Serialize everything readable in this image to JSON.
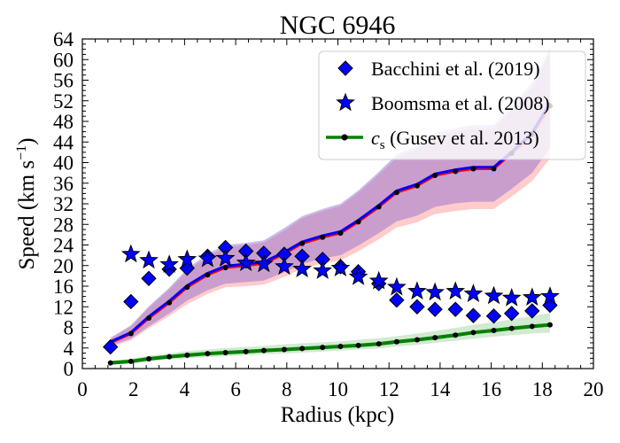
{
  "chart_data": {
    "type": "scatter",
    "title": "NGC 6946",
    "xlabel": "Radius (kpc)",
    "ylabel_prefix": "Speed (km s",
    "ylabel_exp": "−1",
    "ylabel_suffix": ")",
    "xlim": [
      0,
      20
    ],
    "ylim": [
      0,
      64
    ],
    "xticks": [
      0,
      2,
      4,
      6,
      8,
      10,
      12,
      14,
      16,
      18,
      20
    ],
    "yticks": [
      0,
      4,
      8,
      12,
      16,
      20,
      24,
      28,
      32,
      36,
      40,
      44,
      48,
      52,
      56,
      60,
      64
    ],
    "grid": false,
    "legend_position": "top-right",
    "legend": [
      {
        "label": "Bacchini et al. (2019)",
        "marker": "diamond"
      },
      {
        "label": "Boomsma et al. (2008)",
        "marker": "star"
      },
      {
        "label_symbol": "c",
        "label_sub": "s",
        "label_rest": " (Gusev et al. 2013)",
        "marker": "line-dot"
      }
    ],
    "series": [
      {
        "name": "Bacchini et al. (2019)",
        "marker": "diamond",
        "color": "#0000ff",
        "x": [
          1.1,
          1.9,
          2.6,
          3.4,
          4.1,
          4.9,
          5.6,
          6.4,
          7.1,
          7.9,
          8.6,
          9.4,
          10.1,
          10.8,
          11.6,
          12.3,
          13.1,
          13.8,
          14.6,
          15.3,
          16.1,
          16.8,
          17.6,
          18.3
        ],
        "y": [
          4.2,
          13.0,
          17.5,
          19.3,
          19.5,
          21.8,
          23.5,
          22.8,
          22.4,
          22.2,
          21.8,
          21.2,
          19.8,
          18.8,
          16.5,
          13.3,
          12.0,
          11.5,
          11.5,
          10.3,
          10.2,
          10.7,
          11.2,
          12.3
        ]
      },
      {
        "name": "Boomsma et al. (2008)",
        "marker": "star",
        "color": "#0000ff",
        "x": [
          1.9,
          2.6,
          3.4,
          4.1,
          4.9,
          5.6,
          6.4,
          7.1,
          7.9,
          8.6,
          9.4,
          10.1,
          10.8,
          11.6,
          12.3,
          13.1,
          13.8,
          14.6,
          15.3,
          16.1,
          16.8,
          17.6,
          18.3
        ],
        "y": [
          22.2,
          21.0,
          20.2,
          21.2,
          21.3,
          21.4,
          20.5,
          20.3,
          19.8,
          19.3,
          19.0,
          19.5,
          17.8,
          17.0,
          15.8,
          15.0,
          14.8,
          15.0,
          14.5,
          14.1,
          13.7,
          13.8,
          14.0
        ]
      },
      {
        "name": "c_s (Gusev et al. 2013)",
        "marker": "line-dot",
        "color": "#008000",
        "x": [
          1.1,
          1.9,
          2.6,
          3.4,
          4.1,
          4.9,
          5.6,
          6.4,
          7.1,
          7.9,
          8.6,
          9.4,
          10.1,
          10.8,
          11.6,
          12.3,
          13.1,
          13.8,
          14.6,
          15.3,
          16.1,
          16.8,
          17.6,
          18.3
        ],
        "y": [
          1.1,
          1.4,
          1.9,
          2.3,
          2.6,
          2.9,
          3.1,
          3.3,
          3.5,
          3.7,
          3.9,
          4.1,
          4.3,
          4.5,
          4.8,
          5.2,
          5.6,
          6.0,
          6.5,
          7.0,
          7.4,
          7.8,
          8.2,
          8.5
        ],
        "band_low": [
          0.8,
          1.0,
          1.4,
          1.8,
          2.0,
          2.2,
          2.4,
          2.6,
          2.8,
          2.9,
          3.1,
          3.3,
          3.5,
          3.7,
          3.9,
          4.3,
          4.6,
          5.0,
          5.4,
          5.8,
          6.2,
          6.5,
          6.8,
          7.0
        ],
        "band_high": [
          1.5,
          1.9,
          2.5,
          3.0,
          3.4,
          3.7,
          4.0,
          4.2,
          4.4,
          4.7,
          4.9,
          5.1,
          5.3,
          5.6,
          5.9,
          6.3,
          6.8,
          7.3,
          7.9,
          8.5,
          9.0,
          9.6,
          10.2,
          10.8
        ]
      },
      {
        "name": "",
        "marker": "line-dot",
        "color": "#ff0000",
        "x": [
          1.1,
          1.9,
          2.6,
          3.4,
          4.1,
          4.9,
          5.6,
          6.4,
          7.1,
          7.9,
          8.6,
          9.4,
          10.1,
          10.8,
          11.6,
          12.3,
          13.1,
          13.8,
          14.6,
          15.3,
          16.1,
          16.8,
          17.6,
          18.3
        ],
        "y": [
          5.0,
          6.8,
          9.8,
          12.8,
          15.8,
          18.2,
          19.6,
          20.0,
          20.4,
          22.3,
          24.3,
          25.5,
          26.3,
          28.5,
          31.4,
          34.2,
          35.5,
          37.5,
          38.3,
          38.8,
          38.8,
          41.8,
          45.5,
          51.0
        ],
        "band_low": [
          4.2,
          5.5,
          7.8,
          10.2,
          12.5,
          14.5,
          15.8,
          16.0,
          16.3,
          17.8,
          19.4,
          20.4,
          21.0,
          22.8,
          25.1,
          27.4,
          28.4,
          30.0,
          30.6,
          31.0,
          31.0,
          33.4,
          36.4,
          40.8
        ],
        "band_high": [
          5.8,
          8.2,
          11.8,
          15.4,
          19.0,
          21.8,
          23.5,
          24.0,
          24.5,
          26.8,
          29.2,
          30.6,
          31.6,
          34.2,
          37.7,
          41.0,
          42.6,
          45.0,
          46.0,
          46.6,
          46.6,
          50.2,
          54.6,
          61.2
        ]
      },
      {
        "name": "",
        "marker": "line",
        "color": "#0000ff",
        "x": [
          1.1,
          1.9,
          2.6,
          3.4,
          4.1,
          4.9,
          5.6,
          6.4,
          7.1,
          7.9,
          8.6,
          9.4,
          10.1,
          10.8,
          11.6,
          12.3,
          13.1,
          13.8,
          14.6,
          15.3,
          16.1,
          16.8,
          17.6,
          18.3
        ],
        "y": [
          5.2,
          7.0,
          10.1,
          13.1,
          16.1,
          18.5,
          19.9,
          20.3,
          20.7,
          22.6,
          24.6,
          25.8,
          26.6,
          28.8,
          31.7,
          34.5,
          35.8,
          37.8,
          38.6,
          39.1,
          39.1,
          42.1,
          45.8,
          51.6
        ],
        "band_low": [
          4.4,
          5.8,
          8.2,
          10.7,
          13.2,
          15.2,
          16.5,
          16.8,
          17.1,
          18.7,
          20.3,
          21.4,
          22.0,
          23.9,
          26.3,
          28.6,
          29.7,
          31.4,
          32.1,
          32.4,
          32.4,
          34.9,
          38.0,
          42.8
        ],
        "band_high": [
          6.0,
          8.4,
          12.1,
          15.7,
          19.4,
          22.3,
          24.0,
          24.4,
          24.9,
          27.3,
          29.6,
          31.0,
          32.0,
          34.6,
          38.2,
          41.6,
          43.2,
          45.7,
          46.7,
          47.3,
          47.3,
          51.0,
          55.5,
          62.0
        ]
      }
    ]
  }
}
